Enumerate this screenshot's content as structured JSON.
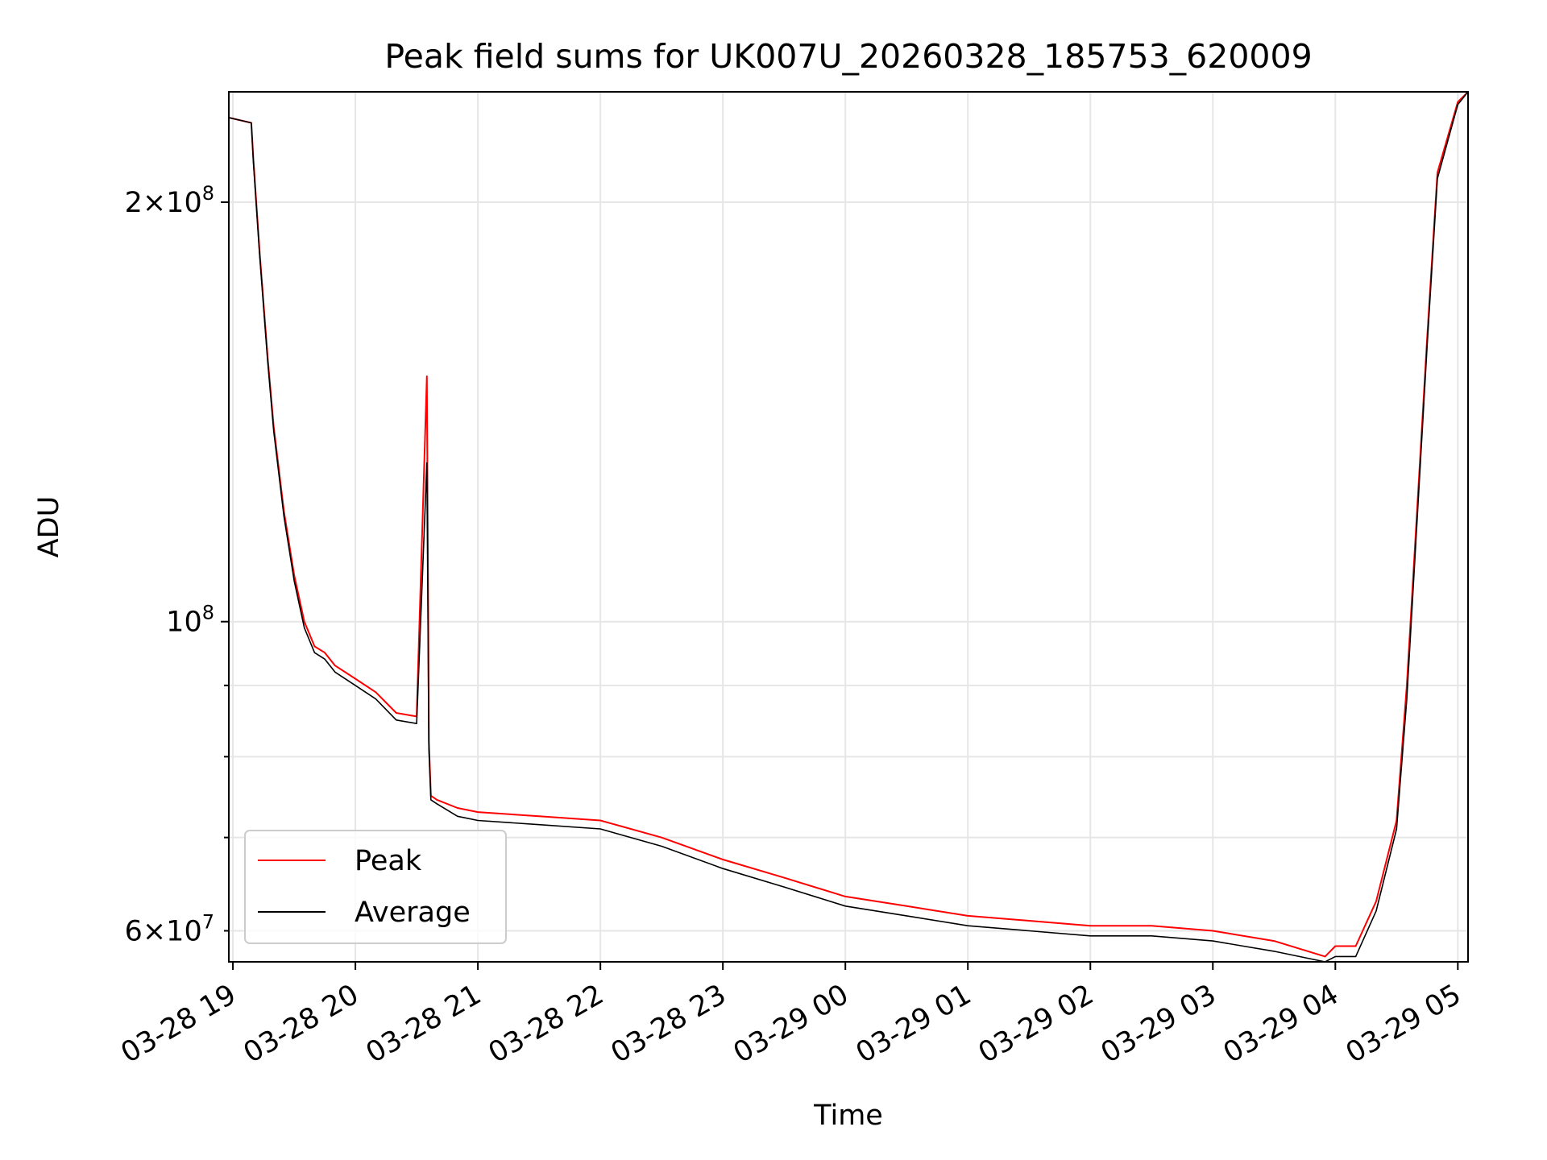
{
  "chart_data": {
    "type": "line",
    "title": "Peak field sums for UK007U_20260328_185753_620009",
    "xlabel": "Time",
    "ylabel": "ADU",
    "yscale": "log",
    "grid": true,
    "legend_position": "lower-left",
    "xlim": [
      "2026-03-28 18:58",
      "2026-03-29 05:05"
    ],
    "ylim": [
      57000000,
      240000000
    ],
    "x_ticks": [
      "2026-03-28 19:00",
      "2026-03-28 20:00",
      "2026-03-28 21:00",
      "2026-03-28 22:00",
      "2026-03-28 23:00",
      "2026-03-29 00:00",
      "2026-03-29 01:00",
      "2026-03-29 02:00",
      "2026-03-29 03:00",
      "2026-03-29 04:00",
      "2026-03-29 05:00"
    ],
    "x_tick_labels": [
      "03-28 19",
      "03-28 20",
      "03-28 21",
      "03-28 22",
      "03-28 23",
      "03-29 00",
      "03-29 01",
      "03-29 02",
      "03-29 03",
      "03-29 04",
      "03-29 05"
    ],
    "y_major_ticks": [
      100000000,
      200000000
    ],
    "y_major_tick_labels": [
      {
        "coef": "",
        "exp": "8"
      },
      {
        "coef": "2×10",
        "exp": "8"
      }
    ],
    "y_minor_ticks": [
      60000000,
      70000000,
      80000000,
      90000000
    ],
    "y_minor_tick_labels": [
      {
        "value": 60000000,
        "coef": "6×10",
        "exp": "7"
      }
    ],
    "series": [
      {
        "name": "Peak",
        "color": "#ff0000",
        "x": [
          "2026-03-28 18:58",
          "2026-03-28 19:09",
          "2026-03-28 19:10",
          "2026-03-28 19:13",
          "2026-03-28 19:17",
          "2026-03-28 19:20",
          "2026-03-28 19:25",
          "2026-03-28 19:30",
          "2026-03-28 19:35",
          "2026-03-28 19:40",
          "2026-03-28 19:45",
          "2026-03-28 19:50",
          "2026-03-28 20:00",
          "2026-03-28 20:10",
          "2026-03-28 20:20",
          "2026-03-28 20:30",
          "2026-03-28 20:35",
          "2026-03-28 20:36",
          "2026-03-28 20:37",
          "2026-03-28 20:40",
          "2026-03-28 20:50",
          "2026-03-28 21:00",
          "2026-03-28 21:30",
          "2026-03-28 22:00",
          "2026-03-28 22:30",
          "2026-03-28 23:00",
          "2026-03-28 23:30",
          "2026-03-29 00:00",
          "2026-03-29 00:30",
          "2026-03-29 01:00",
          "2026-03-29 01:30",
          "2026-03-29 02:00",
          "2026-03-29 02:30",
          "2026-03-29 03:00",
          "2026-03-29 03:30",
          "2026-03-29 03:55",
          "2026-03-29 04:00",
          "2026-03-29 04:10",
          "2026-03-29 04:20",
          "2026-03-29 04:30",
          "2026-03-29 04:35",
          "2026-03-29 04:40",
          "2026-03-29 04:45",
          "2026-03-29 04:50",
          "2026-03-29 05:00",
          "2026-03-29 05:05"
        ],
        "y": [
          230000000,
          228000000,
          215000000,
          185000000,
          155000000,
          138000000,
          120000000,
          108000000,
          100000000,
          96000000,
          95000000,
          93000000,
          91000000,
          89000000,
          86000000,
          85500000,
          150000000,
          82000000,
          75000000,
          74500000,
          73500000,
          73000000,
          72500000,
          72000000,
          70000000,
          67500000,
          65500000,
          63500000,
          62500000,
          61500000,
          61000000,
          60500000,
          60500000,
          60000000,
          59000000,
          57500000,
          58500000,
          58500000,
          63000000,
          72000000,
          90000000,
          120000000,
          160000000,
          210000000,
          236000000,
          240000000
        ]
      },
      {
        "name": "Average",
        "color": "#000000",
        "x": [
          "2026-03-28 18:58",
          "2026-03-28 19:09",
          "2026-03-28 19:10",
          "2026-03-28 19:13",
          "2026-03-28 19:17",
          "2026-03-28 19:20",
          "2026-03-28 19:25",
          "2026-03-28 19:30",
          "2026-03-28 19:35",
          "2026-03-28 19:40",
          "2026-03-28 19:45",
          "2026-03-28 19:50",
          "2026-03-28 20:00",
          "2026-03-28 20:10",
          "2026-03-28 20:20",
          "2026-03-28 20:30",
          "2026-03-28 20:35",
          "2026-03-28 20:36",
          "2026-03-28 20:37",
          "2026-03-28 20:40",
          "2026-03-28 20:50",
          "2026-03-28 21:00",
          "2026-03-28 21:30",
          "2026-03-28 22:00",
          "2026-03-28 22:30",
          "2026-03-28 23:00",
          "2026-03-28 23:30",
          "2026-03-29 00:00",
          "2026-03-29 00:30",
          "2026-03-29 01:00",
          "2026-03-29 01:30",
          "2026-03-29 02:00",
          "2026-03-29 02:30",
          "2026-03-29 03:00",
          "2026-03-29 03:30",
          "2026-03-29 03:55",
          "2026-03-29 04:00",
          "2026-03-29 04:10",
          "2026-03-29 04:20",
          "2026-03-29 04:30",
          "2026-03-29 04:35",
          "2026-03-29 04:40",
          "2026-03-29 04:45",
          "2026-03-29 04:50",
          "2026-03-29 05:00",
          "2026-03-29 05:05"
        ],
        "y": [
          230000000,
          228000000,
          214000000,
          184000000,
          154000000,
          137000000,
          119000000,
          107000000,
          99000000,
          95000000,
          94000000,
          92000000,
          90000000,
          88000000,
          85000000,
          84500000,
          130000000,
          81000000,
          74500000,
          74000000,
          72500000,
          72000000,
          71500000,
          71000000,
          69000000,
          66500000,
          64500000,
          62500000,
          61500000,
          60500000,
          60000000,
          59500000,
          59500000,
          59000000,
          58000000,
          57000000,
          57500000,
          57500000,
          62000000,
          71000000,
          88000000,
          118000000,
          158000000,
          208000000,
          235000000,
          240000000
        ]
      }
    ]
  }
}
